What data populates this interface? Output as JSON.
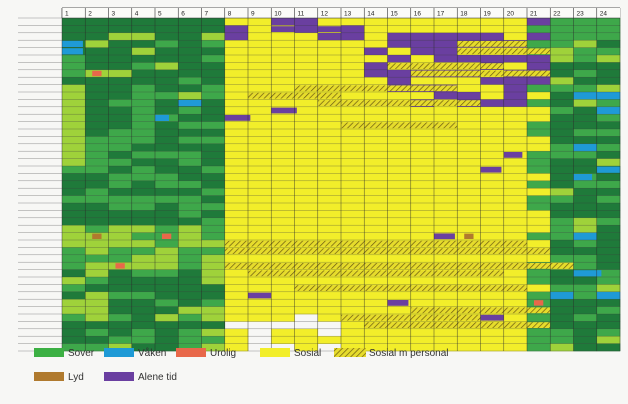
{
  "chart_data": {
    "type": "heatmap",
    "title": "",
    "xlabel": "",
    "ylabel": "",
    "hours": [
      "1",
      "2",
      "3",
      "4",
      "5",
      "6",
      "7",
      "8",
      "9",
      "10",
      "11",
      "12",
      "13",
      "14",
      "15",
      "16",
      "17",
      "18",
      "19",
      "20",
      "21",
      "22",
      "23",
      "24"
    ],
    "row_count": 45,
    "legend": [
      {
        "key": "sover",
        "label": "Sover",
        "color": "#3cb043"
      },
      {
        "key": "vaken",
        "label": "Våken",
        "color": "#1f9ad6"
      },
      {
        "key": "urolig",
        "label": "Urolig",
        "color": "#e8684a"
      },
      {
        "key": "sosial",
        "label": "Sosial",
        "color": "#f2ee2a"
      },
      {
        "key": "sosial_m_personal",
        "label": "Sosial m personal",
        "color": "#e4da2a",
        "hatched": true
      },
      {
        "key": "lyd",
        "label": "Lyd",
        "color": "#b07a2e"
      },
      {
        "key": "alene_tid",
        "label": "Alene tid",
        "color": "#6a3fa0"
      }
    ],
    "sleep_shades": {
      "dark": "#1f7a3a",
      "mid": "#3ea84a",
      "light": "#9fd23a"
    },
    "overview": {
      "sleep_hours_start": [
        "1",
        "2",
        "3",
        "4",
        "5",
        "6",
        "7"
      ],
      "social_hours": [
        "8",
        "9",
        "10",
        "11",
        "12",
        "13",
        "14",
        "15",
        "16",
        "17",
        "18",
        "19",
        "20",
        "21"
      ],
      "sleep_hours_end": [
        "22",
        "23",
        "24"
      ]
    }
  }
}
